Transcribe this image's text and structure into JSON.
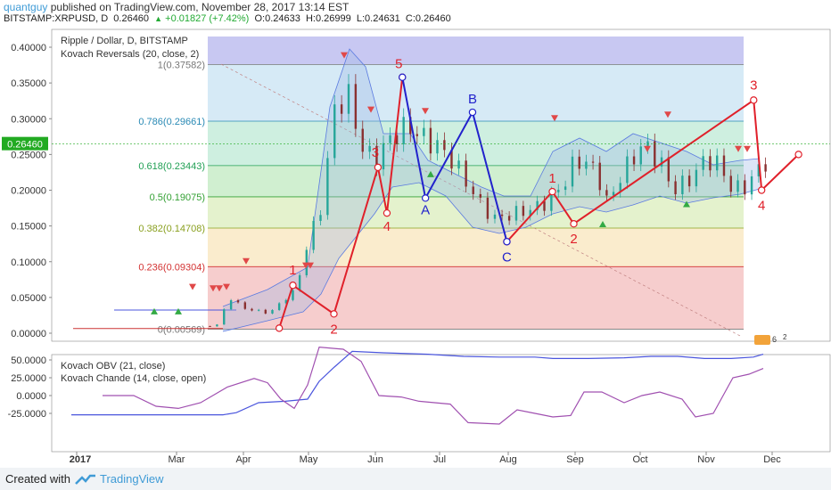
{
  "header": {
    "user": "quantguy",
    "published": " published on TradingView.com, November 28, 2017 13:14 EST",
    "symbol": "BITSTAMP:XRPUSD, D",
    "last": "0.26460",
    "change": "+0.01827 (+7.42%)",
    "open": "O:0.24633",
    "high": "H:0.26999",
    "low": "L:0.24631",
    "close": "C:0.26460"
  },
  "footer": {
    "created": "Created with",
    "brand": "TradingView"
  },
  "legend": {
    "main_title": "Ripple / Dollar, D, BITSTAMP",
    "main_indicator": "Kovach Reversals (20, close, 2)",
    "sub_obv": "Kovach OBV (21, close)",
    "sub_chande": "Kovach Chande (14, close, open)"
  },
  "colors": {
    "price_tag": "#22aa22",
    "wave_red": "#e0202a",
    "wave_blue": "#2222cc",
    "obv": "#4a55dd",
    "chande": "#a050b0",
    "bollinger": "#5a7ae0"
  },
  "chart_data": [
    {
      "type": "candlestick",
      "title": "Ripple / Dollar, D, BITSTAMP",
      "x_labels": [
        "2017",
        "Mar",
        "Apr",
        "May",
        "Jun",
        "Jul",
        "Aug",
        "Sep",
        "Oct",
        "Nov",
        "Dec"
      ],
      "y_ticks": [
        "0.40000",
        "0.35000",
        "0.30000",
        "0.25000",
        "0.20000",
        "0.15000",
        "0.10000",
        "0.05000",
        "0.00000"
      ],
      "ylim": [
        0,
        0.41
      ],
      "last_price_label": "0.26460",
      "fib_levels": [
        {
          "ratio": "0",
          "label": "0(0.00569)",
          "value": 0.00569,
          "color": "#777777"
        },
        {
          "ratio": "0.236",
          "label": "0.236(0.09304)",
          "value": 0.09304,
          "color": "#d33333"
        },
        {
          "ratio": "0.382",
          "label": "0.382(0.14708)",
          "value": 0.14708,
          "color": "#8aa020"
        },
        {
          "ratio": "0.5",
          "label": "0.5(0.19075)",
          "value": 0.19075,
          "color": "#33a033"
        },
        {
          "ratio": "0.618",
          "label": "0.618(0.23443)",
          "value": 0.23443,
          "color": "#22a055"
        },
        {
          "ratio": "0.786",
          "label": "0.786(0.29661)",
          "value": 0.29661,
          "color": "#2a8ab5"
        },
        {
          "ratio": "1",
          "label": "1(0.37582)",
          "value": 0.37582,
          "color": "#777777"
        }
      ],
      "waves_red": [
        {
          "points": [
            [
              3.55,
              0.007
            ],
            [
              3.76,
              0.067
            ],
            [
              4.38,
              0.027
            ],
            [
              5.04,
              0.232
            ],
            [
              5.18,
              0.168
            ],
            [
              5.42,
              0.358
            ]
          ],
          "labels": [
            [
              "1",
              1
            ],
            [
              "2",
              2
            ],
            [
              "3",
              3
            ],
            [
              "4",
              4
            ],
            [
              "5",
              5
            ]
          ]
        },
        {
          "points": [
            [
              6.98,
              0.128
            ],
            [
              7.66,
              0.198
            ],
            [
              7.98,
              0.153
            ],
            [
              10.72,
              0.326
            ],
            [
              10.84,
              0.2
            ],
            [
              11.4,
              0.25
            ]
          ],
          "labels": [
            [
              "1",
              1
            ],
            [
              "2",
              2
            ],
            [
              "3",
              3
            ],
            [
              "4",
              4
            ]
          ]
        }
      ],
      "wave_abc": {
        "points": [
          [
            5.42,
            0.358
          ],
          [
            5.78,
            0.189
          ],
          [
            6.48,
            0.309
          ],
          [
            6.98,
            0.128
          ]
        ],
        "labels": [
          "A",
          "B",
          "C"
        ]
      }
    },
    {
      "type": "line",
      "y_ticks": [
        "50.0000",
        "25.0000",
        "0.0000",
        "-25.0000"
      ],
      "series": [
        {
          "name": "Kovach OBV (21, close)"
        },
        {
          "name": "Kovach Chande (14, close, open)"
        }
      ]
    }
  ]
}
